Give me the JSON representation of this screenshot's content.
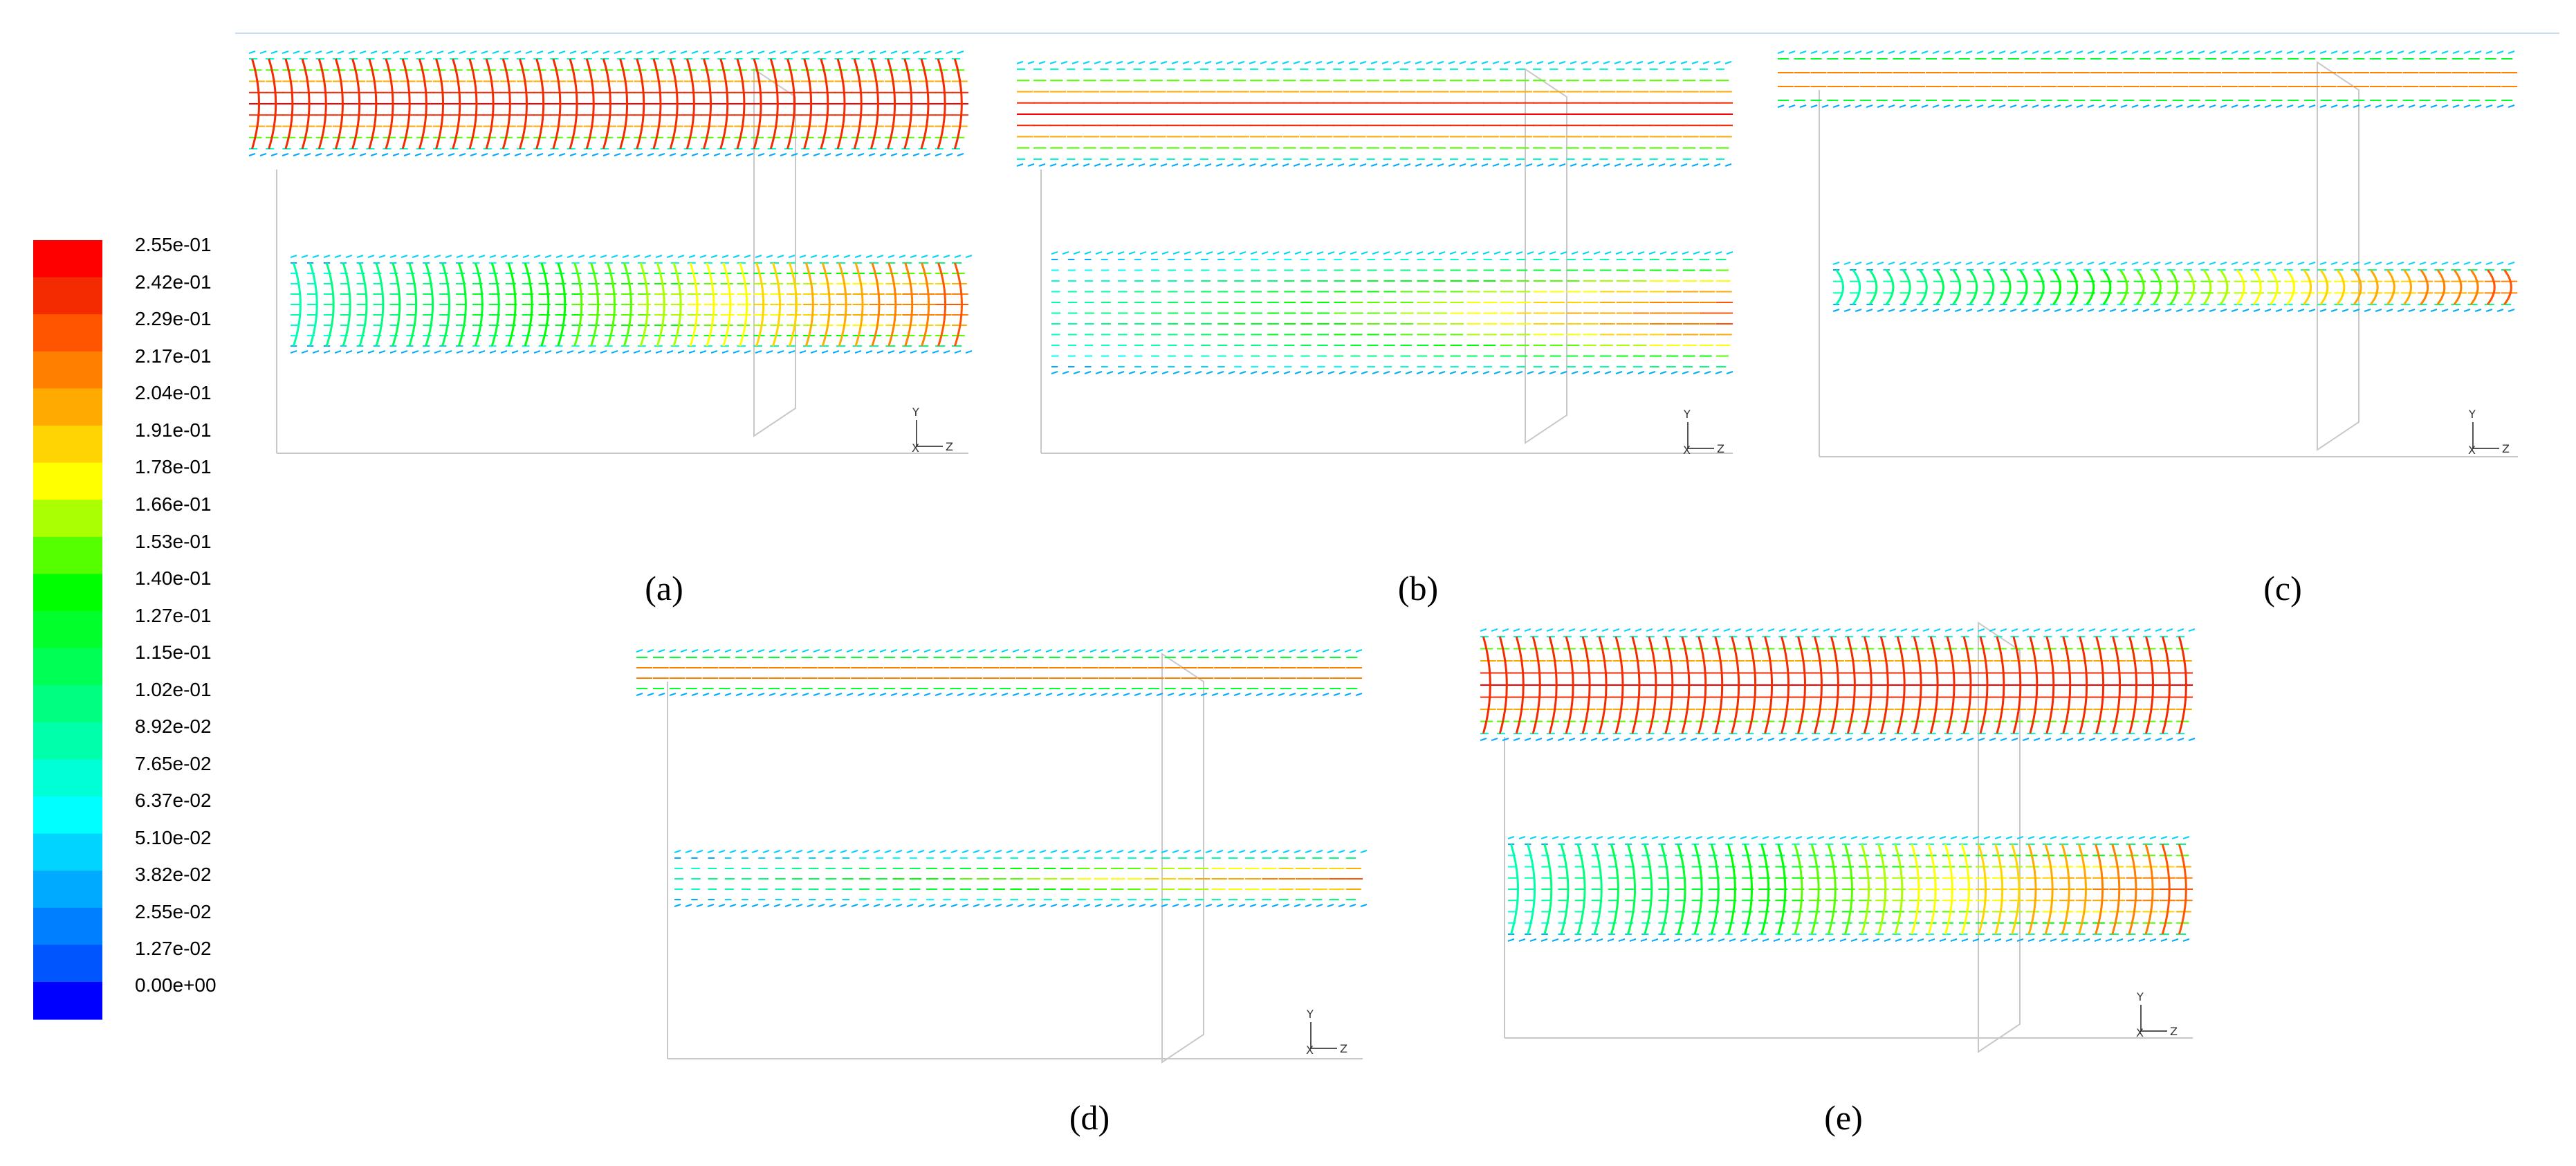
{
  "legend": {
    "labels": [
      "2.55e-01",
      "2.42e-01",
      "2.29e-01",
      "2.17e-01",
      "2.04e-01",
      "1.91e-01",
      "1.78e-01",
      "1.66e-01",
      "1.53e-01",
      "1.40e-01",
      "1.27e-01",
      "1.15e-01",
      "1.02e-01",
      "8.92e-02",
      "7.65e-02",
      "6.37e-02",
      "5.10e-02",
      "3.82e-02",
      "2.55e-02",
      "1.27e-02",
      "0.00e+00"
    ],
    "colors": [
      "#ff0000",
      "#f42a00",
      "#ff5500",
      "#ff8000",
      "#ffaa00",
      "#ffd400",
      "#ffff00",
      "#aaff00",
      "#55ff00",
      "#00ff00",
      "#00ff2b",
      "#00ff55",
      "#00ff80",
      "#00ffaa",
      "#00ffd5",
      "#00ffff",
      "#00d4ff",
      "#00aaff",
      "#0080ff",
      "#0055ff",
      "#0000ff"
    ]
  },
  "panels": [
    {
      "id": "a",
      "caption": "(a)",
      "axes": {
        "y": "Y",
        "x": "Z",
        "origin": "X"
      }
    },
    {
      "id": "b",
      "caption": "(b)",
      "axes": {
        "y": "Y",
        "x": "Z",
        "origin": "X"
      }
    },
    {
      "id": "c",
      "caption": "(c)",
      "axes": {
        "y": "Y",
        "x": "Z",
        "origin": "X"
      }
    },
    {
      "id": "d",
      "caption": "(d)",
      "axes": {
        "y": "Y",
        "x": "Z",
        "origin": "X"
      }
    },
    {
      "id": "e",
      "caption": "(e)",
      "axes": {
        "y": "Y",
        "x": "Z",
        "origin": "X"
      }
    }
  ],
  "colors": {
    "frame_line": "#c8c8c8",
    "top_rule": "#c8dcf0"
  }
}
